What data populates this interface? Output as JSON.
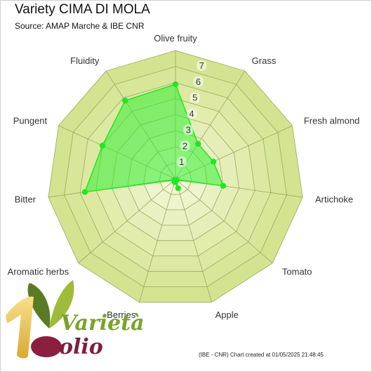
{
  "header": {
    "title": "Variety CIMA DI MOLA",
    "subtitle": "Source: AMAP Marche & IBE CNR"
  },
  "footer": {
    "credit": "(IBE - CNR) Chart created at 01/05/2025 21:48:45"
  },
  "logo": {
    "word1": "Varietà",
    "word2": "olio"
  },
  "colors": {
    "band_dark": "#d4e38f",
    "band_light": "#f2f7d6",
    "series_fill": "#33ee33",
    "series_point": "#22e622"
  },
  "chart_data": {
    "type": "radar",
    "title": "Variety CIMA DI MOLA",
    "subtitle": "Source: AMAP Marche & IBE CNR",
    "categories": [
      "Olive fruity",
      "Grass",
      "Fresh almond",
      "Artichoke",
      "Tomato",
      "Apple",
      "Berries",
      "Aromatic herbs",
      "Bitter",
      "Pungent",
      "Fluidity"
    ],
    "tick_labels": [
      "1",
      "2",
      "3",
      "4",
      "5",
      "6",
      "7"
    ],
    "rlim": [
      0,
      8
    ],
    "grid": true,
    "series": [
      {
        "values": [
          5.9,
          2.6,
          2.6,
          3.0,
          0.1,
          0.6,
          0.2,
          0.1,
          5.7,
          5.0,
          5.8
        ]
      }
    ]
  }
}
